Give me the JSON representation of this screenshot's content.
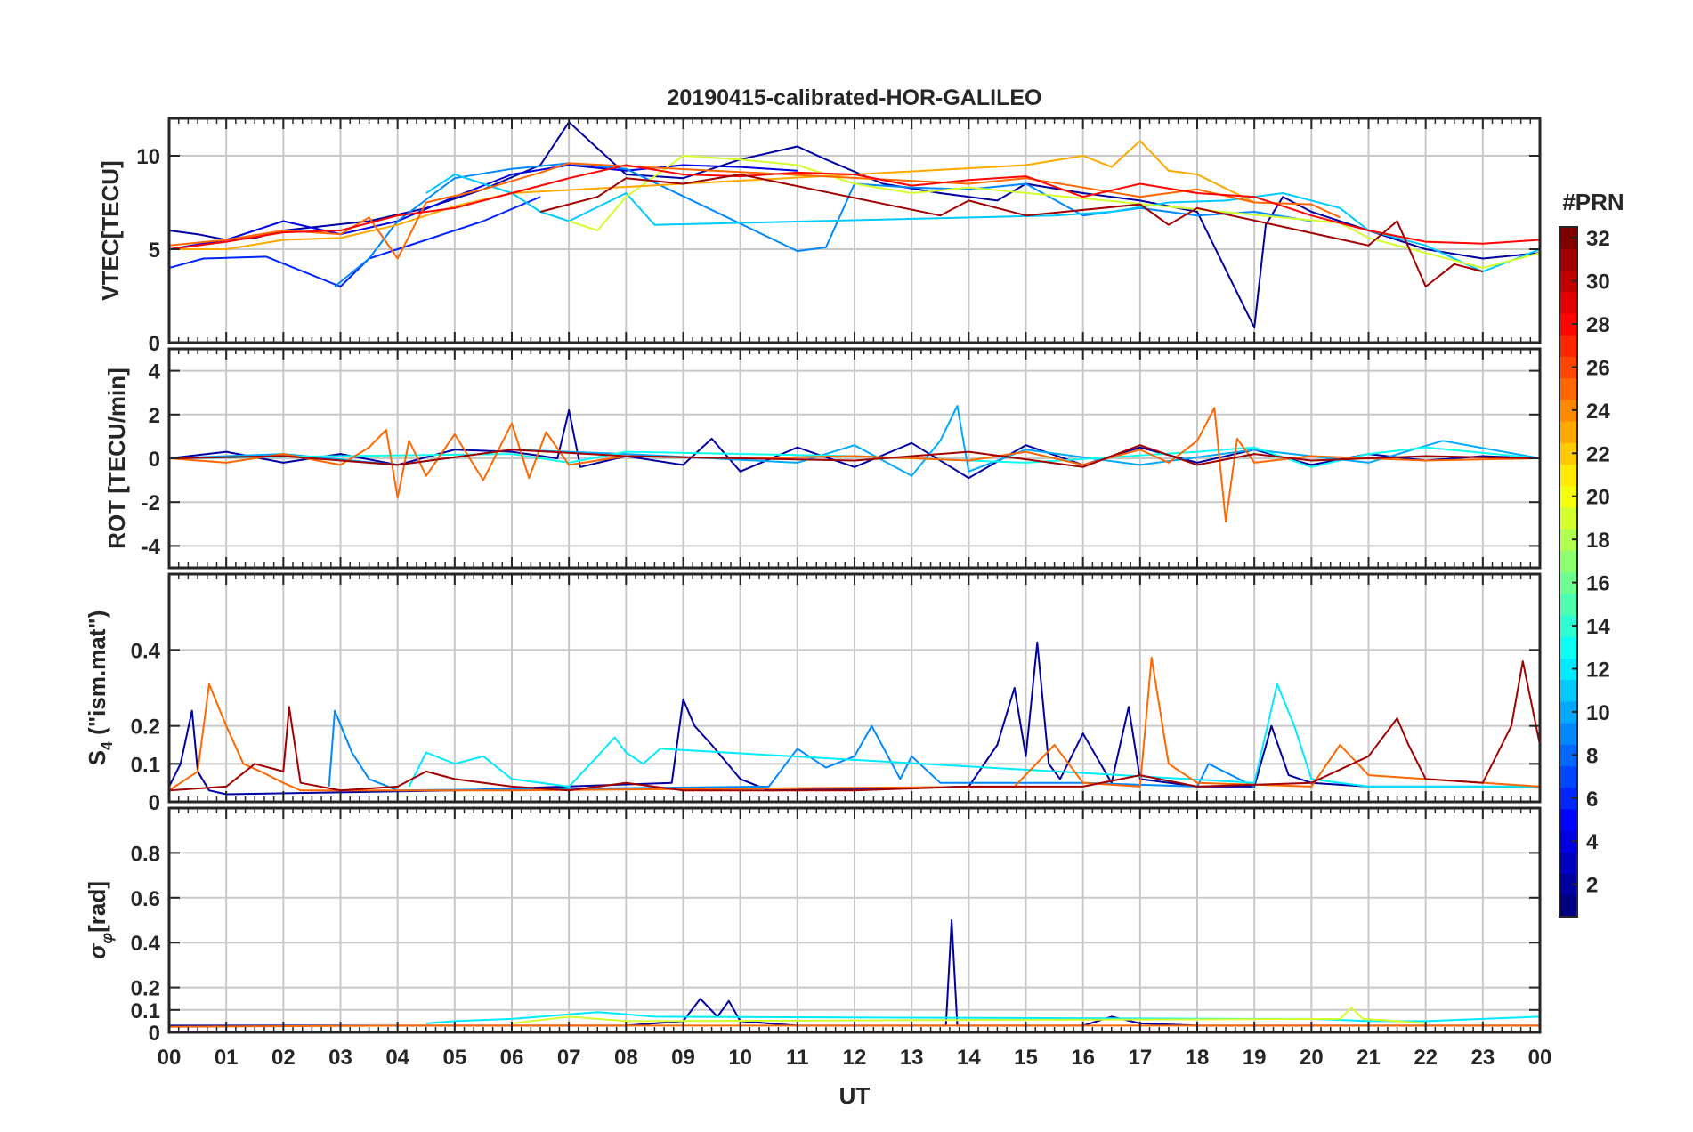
{
  "figure": {
    "title": "20190415-calibrated-HOR-GALILEO",
    "xlabel": "UT",
    "x_tick_labels": [
      "00",
      "01",
      "02",
      "03",
      "04",
      "05",
      "06",
      "07",
      "08",
      "09",
      "10",
      "11",
      "12",
      "13",
      "14",
      "15",
      "16",
      "17",
      "18",
      "19",
      "20",
      "21",
      "22",
      "23",
      "00"
    ]
  },
  "colorbar": {
    "label": "#PRN",
    "range": [
      1,
      32
    ],
    "ticks": [
      2,
      4,
      6,
      8,
      10,
      12,
      14,
      16,
      18,
      20,
      22,
      24,
      26,
      28,
      30,
      32
    ],
    "colormap": "jet"
  },
  "chart_data": [
    {
      "type": "line",
      "panel": "vtec",
      "ylabel": "VTEC[TECU]",
      "xlim": [
        0,
        24
      ],
      "ylim": [
        0,
        12
      ],
      "yticks": [
        0,
        5,
        10
      ],
      "grid": true,
      "series": [
        {
          "prn": 2,
          "x": [
            0,
            0.5,
            1,
            1.5,
            2,
            3.5,
            4.5,
            5.5,
            6.5,
            7,
            8,
            9,
            10,
            11,
            11.5,
            12.5,
            13.5,
            14.5,
            15,
            16,
            17,
            18,
            19,
            19.2,
            19.5,
            20,
            21,
            22,
            23,
            24
          ],
          "y": [
            6,
            5.8,
            5.5,
            5.6,
            6,
            6.5,
            7.2,
            8.2,
            9.5,
            11.8,
            9,
            8.8,
            9.8,
            10.5,
            9.8,
            8.5,
            8,
            7.6,
            8.5,
            8,
            7.6,
            7,
            0.8,
            6.3,
            7.8,
            7,
            6,
            5,
            4.5,
            4.8
          ]
        },
        {
          "prn": 4,
          "x": [
            0,
            1,
            2,
            3,
            4,
            5,
            6,
            7,
            8,
            9,
            10,
            11
          ],
          "y": [
            5,
            5.5,
            6.5,
            5.8,
            6.5,
            7.8,
            9,
            9.5,
            9.2,
            9.5,
            9.4,
            9.2
          ]
        },
        {
          "prn": 6,
          "x": [
            0,
            0.6,
            1.7,
            3,
            3.5,
            4.5,
            5.5,
            6.5
          ],
          "y": [
            4,
            4.5,
            4.6,
            3,
            4.5,
            5.5,
            6.5,
            7.8
          ]
        },
        {
          "prn": 9,
          "x": [
            2.9,
            3.5,
            4,
            5,
            6,
            7,
            8,
            11,
            11.5,
            12,
            13,
            14,
            15,
            16,
            17,
            18,
            19,
            20
          ],
          "y": [
            3,
            4.5,
            6.5,
            8.8,
            9.3,
            9.6,
            9.3,
            4.9,
            5.1,
            8.5,
            8.3,
            8.2,
            8.5,
            6.8,
            7.2,
            6.8,
            7,
            6.5
          ]
        },
        {
          "prn": 11,
          "x": [
            4.5,
            5,
            6,
            6.5,
            7,
            8,
            8.5,
            15.5,
            16.5,
            17.5,
            18.5,
            19.5,
            20.5,
            21,
            22,
            23,
            24
          ],
          "y": [
            8,
            9,
            8,
            7,
            6.5,
            8,
            6.3,
            6.8,
            7,
            7.5,
            7.6,
            8,
            7.2,
            6,
            5.2,
            3.8,
            5
          ]
        },
        {
          "prn": 19,
          "x": [
            7,
            7.5,
            8,
            9,
            10,
            11,
            12,
            13,
            14,
            20.5,
            21,
            22,
            23,
            24
          ],
          "y": [
            6.5,
            6,
            7.8,
            10,
            9.8,
            9.5,
            8.5,
            8,
            8.3,
            6.4,
            5.6,
            4.8,
            4,
            4.8
          ]
        },
        {
          "prn": 23,
          "x": [
            0,
            1,
            2,
            3,
            4,
            5,
            6,
            15,
            16,
            16.5,
            17,
            17.5,
            18,
            19
          ],
          "y": [
            5,
            5,
            5.5,
            5.6,
            6.3,
            7.3,
            8,
            9.5,
            10,
            9.4,
            10.8,
            9.2,
            9,
            7.5
          ]
        },
        {
          "prn": 25,
          "x": [
            0,
            1,
            2,
            3,
            3.5,
            4,
            4.5,
            5.5,
            6.5,
            7,
            14,
            15,
            16,
            17,
            18,
            19,
            20,
            20.5
          ],
          "y": [
            5.2,
            5.5,
            6,
            5.8,
            6.7,
            4.5,
            7.5,
            8.2,
            9.1,
            9.6,
            8.5,
            8.8,
            8.3,
            7.8,
            8.2,
            7.5,
            7.4,
            6.7
          ]
        },
        {
          "prn": 28,
          "x": [
            0,
            1,
            2,
            3,
            4,
            5,
            6,
            7,
            8,
            9,
            10,
            11,
            12,
            13,
            14,
            15,
            16,
            17,
            18,
            19,
            20,
            21,
            22,
            23,
            24
          ],
          "y": [
            5,
            5.4,
            5.9,
            6,
            6.8,
            7.2,
            8,
            8.8,
            9.5,
            9,
            8.9,
            9.1,
            9,
            8.4,
            8.7,
            8.9,
            7.8,
            8.5,
            8,
            7.8,
            6.8,
            6,
            5.4,
            5.3,
            5.5
          ]
        },
        {
          "prn": 31,
          "x": [
            6.5,
            7.5,
            8,
            9,
            10,
            13.5,
            14,
            15,
            17,
            17.5,
            18,
            21,
            21.5,
            22,
            22.5,
            23
          ],
          "y": [
            7,
            7.8,
            8.8,
            8.5,
            9,
            6.8,
            7.6,
            6.8,
            7.4,
            6.3,
            7.2,
            5.2,
            6.5,
            3,
            4.2,
            3.8
          ]
        }
      ]
    },
    {
      "type": "line",
      "panel": "rot",
      "ylabel": "ROT [TECU/min]",
      "xlim": [
        0,
        24
      ],
      "ylim": [
        -5,
        5
      ],
      "yticks": [
        -4,
        -2,
        0,
        2,
        4
      ],
      "grid": true,
      "series": [
        {
          "prn": 2,
          "x": [
            0,
            1,
            2,
            3,
            4,
            5,
            6,
            6.8,
            7,
            7.2,
            8,
            9,
            9.5,
            10,
            11,
            12,
            13,
            14,
            15,
            16,
            17,
            18,
            19,
            20,
            21,
            22,
            23,
            24
          ],
          "y": [
            0,
            0.3,
            -0.2,
            0.2,
            -0.3,
            0.4,
            0.3,
            0,
            2.2,
            -0.4,
            0.1,
            -0.3,
            0.9,
            -0.6,
            0.5,
            -0.4,
            0.7,
            -0.9,
            0.6,
            -0.3,
            0.5,
            -0.2,
            0.4,
            -0.3,
            0.2,
            -0.1,
            0.1,
            0
          ]
        },
        {
          "prn": 10,
          "x": [
            0,
            2,
            4,
            6,
            8,
            11,
            12,
            13,
            13.5,
            13.8,
            14,
            15,
            17,
            19,
            21,
            22.3,
            24
          ],
          "y": [
            0,
            0.2,
            -0.3,
            0.4,
            0.2,
            -0.2,
            0.6,
            -0.8,
            0.8,
            2.4,
            -0.6,
            0.4,
            -0.3,
            0.4,
            -0.2,
            0.8,
            0
          ]
        },
        {
          "prn": 13,
          "x": [
            0,
            3,
            6,
            7,
            8,
            12,
            15,
            18,
            19,
            20,
            21,
            22,
            24
          ],
          "y": [
            0,
            0.1,
            0.2,
            -0.2,
            0.3,
            0.1,
            -0.2,
            0.3,
            0.5,
            -0.4,
            0.2,
            0.5,
            0
          ]
        },
        {
          "prn": 25,
          "x": [
            0,
            1,
            2,
            3,
            3.5,
            3.8,
            4,
            4.2,
            4.5,
            5,
            5.5,
            6,
            6.3,
            6.6,
            7,
            8,
            10,
            12,
            14,
            15,
            16,
            17,
            17.5,
            18,
            18.3,
            18.5,
            18.7,
            19,
            20,
            22,
            24
          ],
          "y": [
            0,
            -0.2,
            0.2,
            -0.3,
            0.5,
            1.3,
            -1.8,
            0.8,
            -0.8,
            1.1,
            -1,
            1.6,
            -0.9,
            1.2,
            -0.3,
            0.1,
            0,
            0.1,
            -0.1,
            0.3,
            -0.3,
            0.4,
            -0.2,
            0.8,
            2.3,
            -2.9,
            0.9,
            -0.2,
            0.1,
            -0.1,
            0
          ]
        },
        {
          "prn": 31,
          "x": [
            0,
            2,
            4,
            6,
            8,
            12,
            14,
            16,
            17,
            18,
            19,
            20,
            22,
            24
          ],
          "y": [
            0,
            0.1,
            -0.3,
            0.4,
            0.1,
            -0.1,
            0.3,
            -0.4,
            0.6,
            -0.3,
            0.2,
            -0.1,
            0.1,
            0
          ]
        }
      ]
    },
    {
      "type": "line",
      "panel": "s4",
      "ylabel": "S4 (\"ism.mat\")",
      "xlim": [
        0,
        24
      ],
      "ylim": [
        0,
        0.6
      ],
      "yticks": [
        0,
        0.1,
        0.2,
        0.4
      ],
      "grid": true,
      "series": [
        {
          "prn": 2,
          "x": [
            0,
            0.2,
            0.4,
            0.5,
            0.7,
            1,
            5,
            8.8,
            9,
            9.2,
            9.5,
            10,
            10.5,
            14,
            14.5,
            14.8,
            15,
            15.2,
            15.4,
            15.6,
            16,
            16.5,
            16.8,
            17,
            18,
            19,
            19.3,
            19.6,
            20,
            21,
            24
          ],
          "y": [
            0.04,
            0.1,
            0.24,
            0.08,
            0.03,
            0.02,
            0.03,
            0.05,
            0.27,
            0.2,
            0.15,
            0.06,
            0.03,
            0.04,
            0.15,
            0.3,
            0.12,
            0.42,
            0.1,
            0.06,
            0.18,
            0.05,
            0.25,
            0.06,
            0.04,
            0.04,
            0.2,
            0.07,
            0.05,
            0.04,
            0.04
          ]
        },
        {
          "prn": 9,
          "x": [
            2.8,
            2.9,
            3.2,
            3.5,
            4,
            10.5,
            11,
            11.5,
            12,
            12.3,
            12.8,
            13,
            13.5,
            16,
            18,
            18.2,
            19
          ],
          "y": [
            0.04,
            0.24,
            0.13,
            0.06,
            0.03,
            0.04,
            0.14,
            0.09,
            0.12,
            0.2,
            0.06,
            0.12,
            0.05,
            0.05,
            0.04,
            0.1,
            0.04
          ]
        },
        {
          "prn": 12,
          "x": [
            4.2,
            4.5,
            5,
            5.5,
            6,
            7,
            7.5,
            7.8,
            8,
            8.3,
            8.6,
            19,
            19.4,
            19.7,
            20,
            20.5,
            21,
            24
          ],
          "y": [
            0.04,
            0.13,
            0.1,
            0.12,
            0.06,
            0.04,
            0.12,
            0.17,
            0.13,
            0.1,
            0.14,
            0.05,
            0.31,
            0.2,
            0.06,
            0.05,
            0.04,
            0.04
          ]
        },
        {
          "prn": 25,
          "x": [
            0,
            0.5,
            0.7,
            1,
            1.3,
            1.6,
            2,
            2.3,
            2.6,
            3,
            6,
            14.8,
            15.5,
            16,
            17,
            17.2,
            17.5,
            18,
            20,
            20.5,
            21,
            24
          ],
          "y": [
            0.03,
            0.08,
            0.31,
            0.2,
            0.1,
            0.08,
            0.05,
            0.03,
            0.03,
            0.03,
            0.03,
            0.04,
            0.15,
            0.05,
            0.04,
            0.38,
            0.1,
            0.05,
            0.04,
            0.15,
            0.07,
            0.04
          ]
        },
        {
          "prn": 31,
          "x": [
            0,
            1,
            1.5,
            2,
            2.1,
            2.3,
            3,
            4,
            4.5,
            5,
            6,
            7,
            8,
            9,
            12,
            14,
            16,
            17,
            18,
            20,
            21,
            21.5,
            21.7,
            22,
            23,
            23.5,
            23.7,
            24
          ],
          "y": [
            0.03,
            0.04,
            0.1,
            0.08,
            0.25,
            0.05,
            0.03,
            0.04,
            0.08,
            0.06,
            0.04,
            0.03,
            0.05,
            0.03,
            0.03,
            0.04,
            0.04,
            0.07,
            0.04,
            0.05,
            0.12,
            0.22,
            0.15,
            0.06,
            0.05,
            0.2,
            0.37,
            0.15
          ]
        }
      ]
    },
    {
      "type": "line",
      "panel": "sigma_phi",
      "ylabel": "σφ[rad]",
      "xlim": [
        0,
        24
      ],
      "ylim": [
        0,
        1
      ],
      "yticks": [
        0,
        0.1,
        0.2,
        0.4,
        0.6,
        0.8
      ],
      "grid": true,
      "series": [
        {
          "prn": 2,
          "x": [
            0,
            1,
            2,
            3,
            4,
            5,
            6,
            7,
            8,
            9,
            9.3,
            9.6,
            9.8,
            10,
            11,
            12,
            13,
            13.6,
            13.7,
            13.8,
            14,
            15,
            16,
            16.5,
            17,
            18,
            24
          ],
          "y": [
            0.03,
            0.03,
            0.03,
            0.03,
            0.03,
            0.03,
            0.03,
            0.03,
            0.03,
            0.05,
            0.15,
            0.07,
            0.14,
            0.05,
            0.03,
            0.03,
            0.03,
            0.03,
            0.5,
            0.03,
            0.03,
            0.03,
            0.03,
            0.07,
            0.04,
            0.03,
            0.03
          ]
        },
        {
          "prn": 12,
          "x": [
            4.5,
            5,
            6,
            6.5,
            7,
            7.5,
            8,
            8.5,
            19,
            20,
            21,
            22,
            23,
            24
          ],
          "y": [
            0.04,
            0.05,
            0.06,
            0.07,
            0.08,
            0.09,
            0.08,
            0.07,
            0.06,
            0.06,
            0.05,
            0.05,
            0.06,
            0.07
          ]
        },
        {
          "prn": 19,
          "x": [
            6,
            7,
            8,
            20.5,
            20.7,
            20.9,
            21.5,
            22
          ],
          "y": [
            0.04,
            0.07,
            0.05,
            0.06,
            0.11,
            0.06,
            0.05,
            0.04
          ]
        },
        {
          "prn": 25,
          "x": [
            0,
            4,
            8,
            12,
            16,
            20,
            24
          ],
          "y": [
            0.025,
            0.03,
            0.03,
            0.03,
            0.03,
            0.03,
            0.03
          ]
        }
      ]
    }
  ]
}
